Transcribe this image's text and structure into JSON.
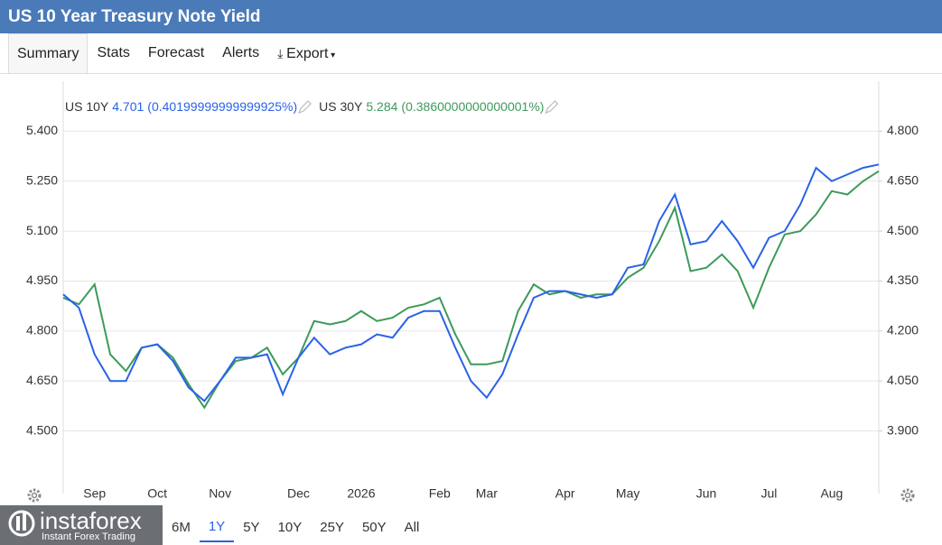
{
  "header": {
    "title": "US 10 Year Treasury Note Yield"
  },
  "tabs": [
    "Summary",
    "Stats",
    "Forecast",
    "Alerts",
    "Export"
  ],
  "chart_data": {
    "type": "line",
    "categories": [
      null,
      null,
      "Sep",
      null,
      null,
      null,
      "Oct",
      null,
      null,
      null,
      "Nov",
      null,
      null,
      null,
      null,
      "Dec",
      null,
      null,
      null,
      "2026",
      null,
      null,
      null,
      null,
      "Feb",
      null,
      null,
      "Mar",
      null,
      null,
      null,
      null,
      "Apr",
      null,
      null,
      null,
      "May",
      null,
      null,
      null,
      null,
      "Jun",
      null,
      null,
      null,
      "Jul",
      null,
      null,
      null,
      "Aug",
      null,
      null,
      null
    ],
    "series": [
      {
        "name": "US 10Y",
        "color": "#2962e8",
        "axis": "y2",
        "last": 4.701,
        "change": "(0.40199999999999925%)",
        "values": [
          4.31,
          4.27,
          4.13,
          4.05,
          4.05,
          4.15,
          4.16,
          4.11,
          4.03,
          3.99,
          4.05,
          4.12,
          4.12,
          4.13,
          4.01,
          4.12,
          4.18,
          4.13,
          4.15,
          4.16,
          4.19,
          4.18,
          4.24,
          4.26,
          4.26,
          4.15,
          4.05,
          4.0,
          4.07,
          4.19,
          4.3,
          4.32,
          4.32,
          4.31,
          4.3,
          4.31,
          4.39,
          4.4,
          4.53,
          4.61,
          4.46,
          4.47,
          4.53,
          4.47,
          4.39,
          4.48,
          4.5,
          4.58,
          4.69,
          4.65,
          4.67,
          4.69,
          4.7
        ]
      },
      {
        "name": "US 30Y",
        "color": "#3d9a5a",
        "last": 5.284,
        "change": "(0.3860000000000001%)",
        "values": [
          4.9,
          4.88,
          4.94,
          4.73,
          4.68,
          4.75,
          4.76,
          4.72,
          4.64,
          4.57,
          4.65,
          4.71,
          4.72,
          4.75,
          4.67,
          4.72,
          4.83,
          4.82,
          4.83,
          4.86,
          4.83,
          4.84,
          4.87,
          4.88,
          4.9,
          4.79,
          4.7,
          4.7,
          4.71,
          4.86,
          4.94,
          4.91,
          4.92,
          4.9,
          4.91,
          4.91,
          4.96,
          4.99,
          5.07,
          5.17,
          4.98,
          4.99,
          5.03,
          4.98,
          4.87,
          4.99,
          5.09,
          5.1,
          5.15,
          5.22,
          5.21,
          5.25,
          5.28
        ]
      }
    ],
    "ylim": [
      4.35,
      5.55
    ],
    "yticks": [
      {
        "value": 4.5,
        "label": "4.500"
      },
      {
        "value": 4.65,
        "label": "4.650"
      },
      {
        "value": 4.8,
        "label": "4.800"
      },
      {
        "value": 4.95,
        "label": "4.950"
      },
      {
        "value": 5.1,
        "label": "5.100"
      },
      {
        "value": 5.25,
        "label": "5.250"
      },
      {
        "value": 5.4,
        "label": "5.400"
      }
    ],
    "y2lim": [
      3.75,
      4.95
    ],
    "y2ticks": [
      {
        "value": 3.9,
        "label": "3.900"
      },
      {
        "value": 4.05,
        "label": "4.050"
      },
      {
        "value": 4.2,
        "label": "4.200"
      },
      {
        "value": 4.35,
        "label": "4.350"
      },
      {
        "value": 4.5,
        "label": "4.500"
      },
      {
        "value": 4.65,
        "label": "4.650"
      },
      {
        "value": 4.8,
        "label": "4.800"
      }
    ],
    "grid": true
  },
  "ranges": [
    "6M",
    "1Y",
    "5Y",
    "10Y",
    "25Y",
    "50Y",
    "All"
  ],
  "logo": {
    "name": "instaforex",
    "tagline": "Instant Forex Trading"
  }
}
